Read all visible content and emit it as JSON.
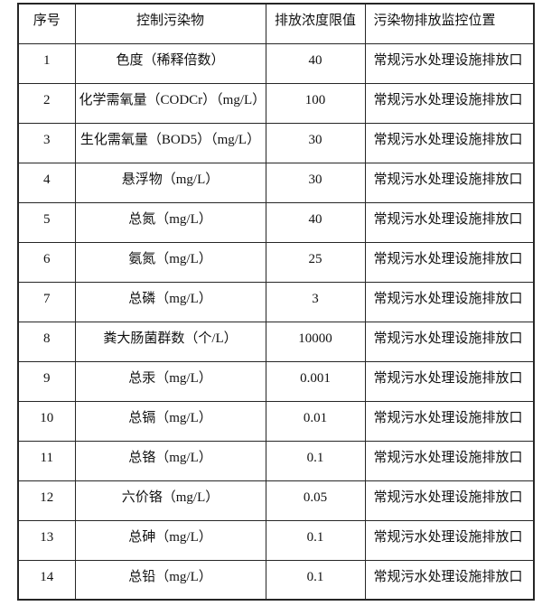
{
  "colors": {
    "border": "#262626",
    "text": "#111111",
    "background": "#ffffff"
  },
  "table": {
    "headers": [
      "序号",
      "控制污染物",
      "排放浓度限值",
      "污染物排放监控位置"
    ],
    "rows": [
      {
        "serial": "1",
        "pollutant": "色度（稀释倍数）",
        "limit": "40",
        "location": "常规污水处理设施排放口"
      },
      {
        "serial": "2",
        "pollutant": "化学需氧量（CODCr）（mg/L）",
        "limit": "100",
        "location": "常规污水处理设施排放口"
      },
      {
        "serial": "3",
        "pollutant": "生化需氧量（BOD5）（mg/L）",
        "limit": "30",
        "location": "常规污水处理设施排放口"
      },
      {
        "serial": "4",
        "pollutant": "悬浮物（mg/L）",
        "limit": "30",
        "location": "常规污水处理设施排放口"
      },
      {
        "serial": "5",
        "pollutant": "总氮（mg/L）",
        "limit": "40",
        "location": "常规污水处理设施排放口"
      },
      {
        "serial": "6",
        "pollutant": "氨氮（mg/L）",
        "limit": "25",
        "location": "常规污水处理设施排放口"
      },
      {
        "serial": "7",
        "pollutant": "总磷（mg/L）",
        "limit": "3",
        "location": "常规污水处理设施排放口"
      },
      {
        "serial": "8",
        "pollutant": "粪大肠菌群数（个/L）",
        "limit": "10000",
        "location": "常规污水处理设施排放口"
      },
      {
        "serial": "9",
        "pollutant": "总汞（mg/L）",
        "limit": "0.001",
        "location": "常规污水处理设施排放口"
      },
      {
        "serial": "10",
        "pollutant": "总镉（mg/L）",
        "limit": "0.01",
        "location": "常规污水处理设施排放口"
      },
      {
        "serial": "11",
        "pollutant": "总铬（mg/L）",
        "limit": "0.1",
        "location": "常规污水处理设施排放口"
      },
      {
        "serial": "12",
        "pollutant": "六价铬（mg/L）",
        "limit": "0.05",
        "location": "常规污水处理设施排放口"
      },
      {
        "serial": "13",
        "pollutant": "总砷（mg/L）",
        "limit": "0.1",
        "location": "常规污水处理设施排放口"
      },
      {
        "serial": "14",
        "pollutant": "总铅（mg/L）",
        "limit": "0.1",
        "location": "常规污水处理设施排放口"
      }
    ]
  }
}
